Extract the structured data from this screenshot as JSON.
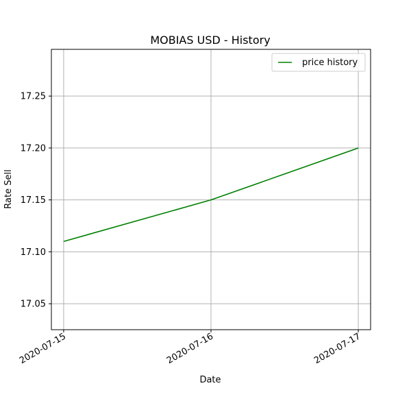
{
  "chart_data": {
    "type": "line",
    "title": "MOBIAS USD - History",
    "xlabel": "Date",
    "ylabel": "Rate Sell",
    "x": [
      "2020-07-15",
      "2020-07-16",
      "2020-07-17"
    ],
    "series": [
      {
        "name": "price history",
        "values": [
          17.11,
          17.15,
          17.2
        ]
      }
    ],
    "ylim": [
      17.025,
      17.295
    ],
    "xlim": [
      "2020-07-14 22:00",
      "2020-07-17 02:00"
    ],
    "yticks": [
      17.05,
      17.1,
      17.15,
      17.2,
      17.25
    ],
    "ytick_labels": [
      "17.05",
      "17.10",
      "17.15",
      "17.20",
      "17.25"
    ],
    "grid": true,
    "legend_position": "upper-right",
    "colors": {
      "line": "#008000",
      "grid": "#b0b0b0",
      "axes": "#000000"
    }
  }
}
